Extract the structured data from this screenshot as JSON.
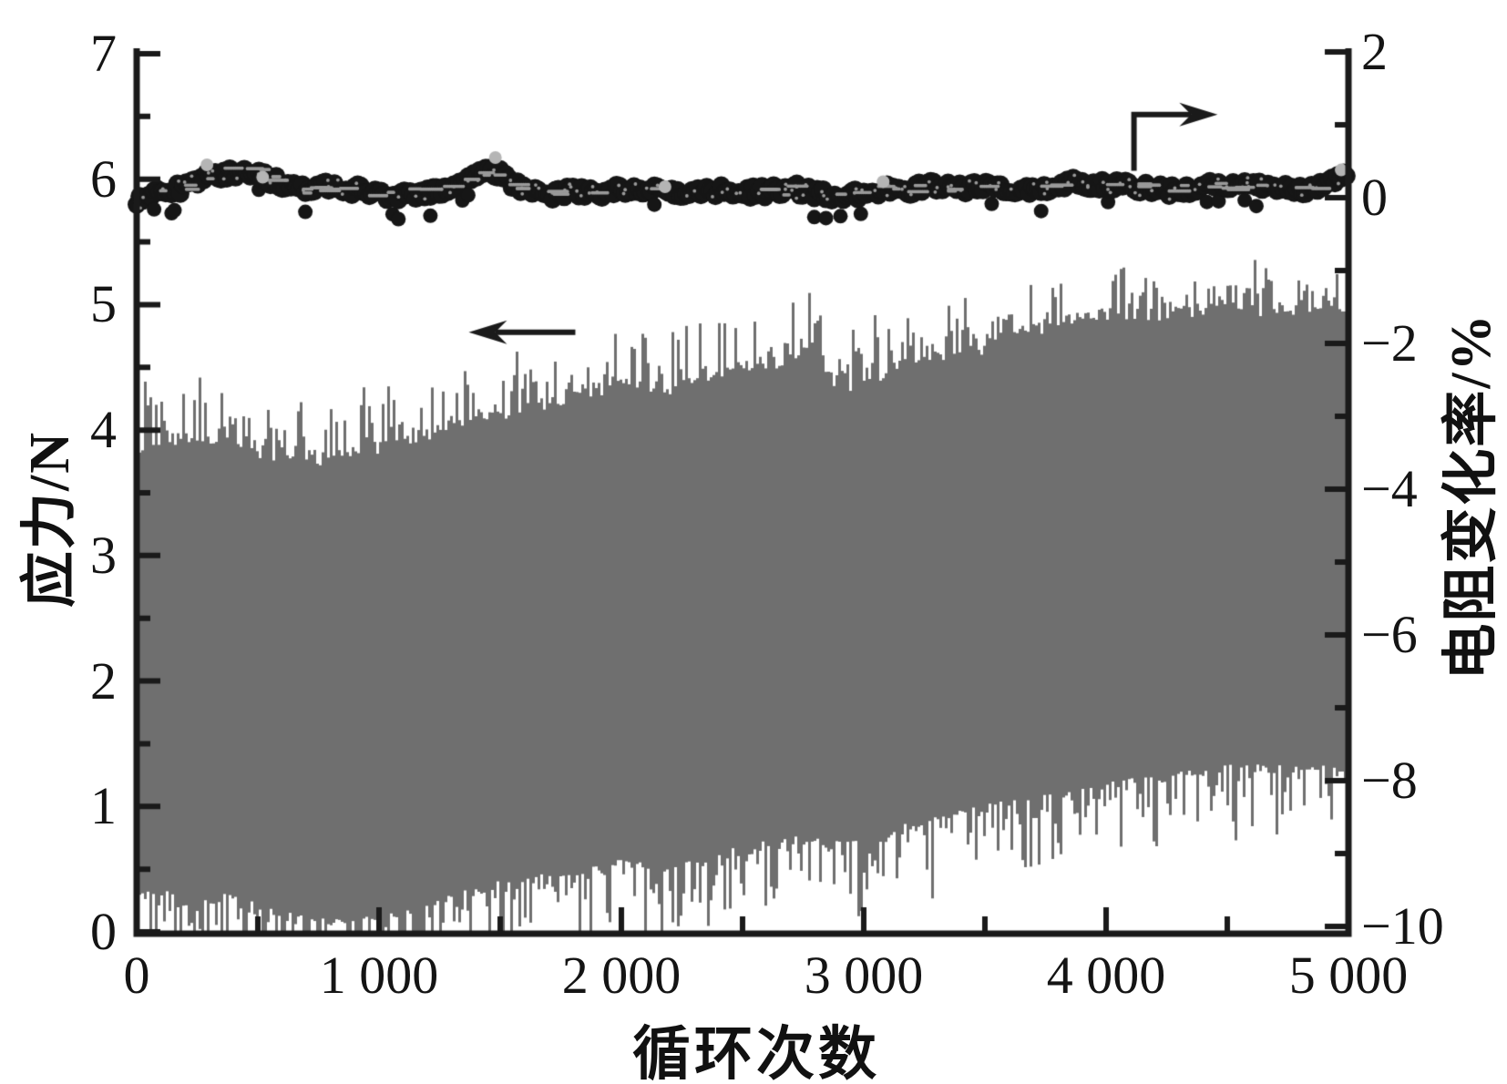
{
  "figure": {
    "description": "Cyclic loading test: stress and resistance change rate vs cycle number"
  },
  "colors": {
    "background": "#ffffff",
    "axis": "#1a1a1a",
    "stress_band": "#6f6f6f",
    "resistance_dots": "#161616",
    "speckle": "#9a9a9a",
    "highlight_dot": "#b5b5b5"
  },
  "axes": {
    "x": {
      "label": "循环次数",
      "range": [
        0,
        5000
      ],
      "major": [
        {
          "v": 0,
          "label": "0"
        },
        {
          "v": 1000,
          "label": "1 000"
        },
        {
          "v": 2000,
          "label": "2 000"
        },
        {
          "v": 3000,
          "label": "3 000"
        },
        {
          "v": 4000,
          "label": "4 000"
        },
        {
          "v": 5000,
          "label": "5 000"
        }
      ],
      "minor": [
        500,
        1500,
        2500,
        3500,
        4500
      ]
    },
    "y_left": {
      "label": "应力/N",
      "range": [
        0,
        7
      ],
      "major": [
        {
          "v": 7,
          "label": "7"
        },
        {
          "v": 6,
          "label": "6"
        },
        {
          "v": 5,
          "label": "5"
        },
        {
          "v": 4,
          "label": "4"
        },
        {
          "v": 3,
          "label": "3"
        },
        {
          "v": 2,
          "label": "2"
        },
        {
          "v": 1,
          "label": "1"
        },
        {
          "v": 0,
          "label": "0"
        }
      ],
      "minor": [
        6.5,
        5.5,
        4.5,
        3.5,
        2.5,
        1.5,
        0.5
      ]
    },
    "y_right": {
      "label": "电阻变化率/%",
      "range": [
        -10,
        2
      ],
      "major": [
        {
          "v": 2,
          "label": "2"
        },
        {
          "v": 0,
          "label": "0"
        },
        {
          "v": -2,
          "label": "−2"
        },
        {
          "v": -4,
          "label": "−4"
        },
        {
          "v": -6,
          "label": "−6"
        },
        {
          "v": -8,
          "label": "−8"
        },
        {
          "v": -10,
          "label": "−10"
        }
      ],
      "minor": [
        1,
        -1,
        -3,
        -5,
        -7,
        -9
      ]
    }
  },
  "chart_data": {
    "type": "line",
    "title": "",
    "xlabel": "循环次数",
    "ylabel_left": "应力/N",
    "ylabel_right": "电阻变化率/%",
    "x_range": [
      0,
      5000
    ],
    "y_left_range": [
      0,
      7
    ],
    "y_right_range": [
      -10,
      2
    ],
    "x_step": 100,
    "series": [
      {
        "name": "stress-band",
        "label": "应力",
        "axis": "left",
        "type": "noisy-band",
        "color": "#6f6f6f",
        "upper": [
          3.78,
          3.82,
          3.86,
          3.82,
          3.78,
          3.72,
          3.66,
          3.62,
          3.64,
          3.7,
          3.76,
          3.82,
          3.88,
          3.94,
          4.0,
          4.06,
          4.1,
          4.16,
          4.22,
          4.3,
          4.36,
          4.3,
          4.34,
          4.4,
          4.44,
          4.48,
          4.52,
          4.56,
          4.62,
          4.3,
          4.36,
          4.4,
          4.46,
          4.5,
          4.55,
          4.6,
          4.68,
          4.74,
          4.8,
          4.84,
          4.86,
          4.88,
          4.9,
          4.93,
          4.95,
          4.98,
          4.95,
          4.98,
          5.0,
          5.03,
          5.05
        ],
        "lower": [
          0.32,
          0.3,
          0.27,
          0.24,
          0.27,
          0.2,
          0.14,
          0.08,
          0.05,
          0.08,
          0.1,
          0.14,
          0.22,
          0.28,
          0.34,
          0.4,
          0.45,
          0.5,
          0.52,
          0.56,
          0.6,
          0.58,
          0.55,
          0.63,
          0.68,
          0.73,
          0.78,
          0.83,
          0.8,
          0.74,
          0.78,
          0.84,
          0.88,
          0.93,
          0.98,
          1.0,
          1.04,
          1.08,
          1.1,
          1.13,
          1.17,
          1.19,
          1.22,
          1.24,
          1.27,
          1.29,
          1.28,
          1.32,
          1.28,
          1.33,
          1.3
        ],
        "spike_above_max": 0.5,
        "spike_below_max": 0.6
      },
      {
        "name": "resistance-dots",
        "label": "电阻变化率",
        "axis": "right",
        "type": "scatter-band",
        "color": "#161616",
        "center": [
          -0.02,
          0.03,
          0.12,
          0.3,
          0.38,
          0.34,
          0.2,
          0.1,
          0.12,
          0.1,
          0.07,
          0.05,
          0.1,
          0.13,
          0.3,
          0.3,
          0.1,
          0.06,
          0.12,
          0.06,
          0.1,
          0.08,
          0.05,
          0.1,
          0.12,
          0.08,
          0.06,
          0.1,
          0.06,
          0.02,
          0.1,
          0.12,
          0.1,
          0.14,
          0.12,
          0.15,
          0.17,
          0.14,
          0.16,
          0.18,
          0.15,
          0.17,
          0.15,
          0.12,
          0.15,
          0.14,
          0.12,
          0.15,
          0.13,
          0.2,
          0.3
        ],
        "band_half_width": 0.2,
        "highlights": [
          {
            "x": 290,
            "y": 0.45
          },
          {
            "x": 520,
            "y": 0.28
          },
          {
            "x": 1480,
            "y": 0.55
          },
          {
            "x": 2180,
            "y": 0.15
          },
          {
            "x": 3080,
            "y": 0.22
          },
          {
            "x": 4970,
            "y": 0.38
          }
        ]
      }
    ],
    "annotations": {
      "left_arrow": {
        "axis": "left",
        "tail_x": 1810,
        "tail_y": 4.78,
        "tip_x": 1370,
        "tip_y": 4.78
      },
      "right_arrow": {
        "axis": "right",
        "elbow": [
          [
            4115,
            0.37
          ],
          [
            4115,
            1.14
          ],
          [
            4460,
            1.14
          ]
        ]
      }
    }
  }
}
